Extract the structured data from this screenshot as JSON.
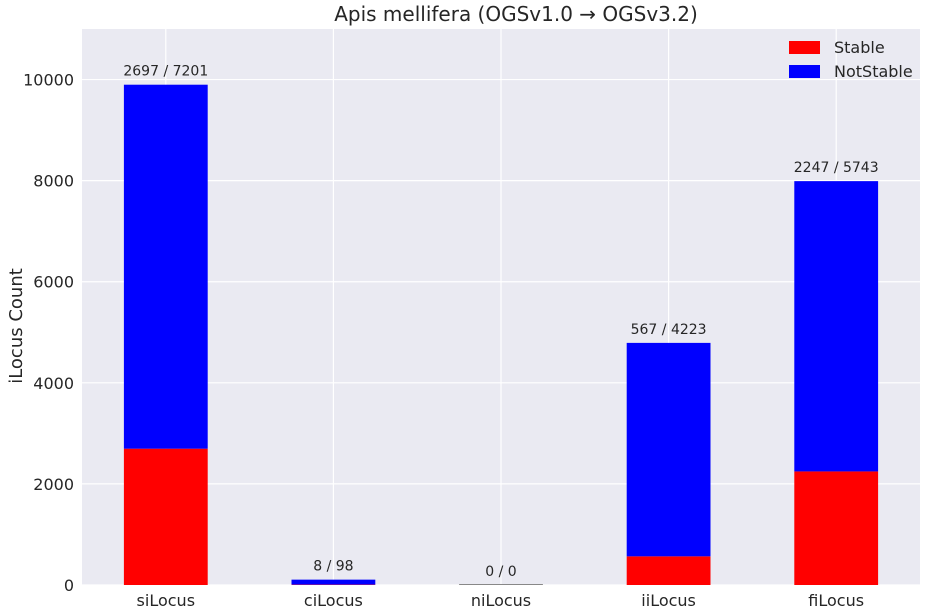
{
  "chart_data": {
    "type": "bar",
    "stacked": true,
    "title": "Apis mellifera (OGSv1.0 → OGSv3.2)",
    "xlabel": "",
    "ylabel": "iLocus Count",
    "categories": [
      "siLocus",
      "ciLocus",
      "niLocus",
      "iiLocus",
      "fiLocus"
    ],
    "series": [
      {
        "name": "Stable",
        "color": "#ff0000",
        "values": [
          2697,
          8,
          0,
          567,
          2247
        ]
      },
      {
        "name": "NotStable",
        "color": "#0000ff",
        "values": [
          7201,
          98,
          0,
          4223,
          5743
        ]
      }
    ],
    "data_labels": [
      "2697 / 7201",
      "8 / 98",
      "0 / 0",
      "567 / 4223",
      "2247 / 5743"
    ],
    "ylim": [
      0,
      11000
    ],
    "yticks": [
      0,
      2000,
      4000,
      6000,
      8000,
      10000
    ],
    "grid": true,
    "background": "#eaeaf2",
    "legend_position": "top-right"
  }
}
